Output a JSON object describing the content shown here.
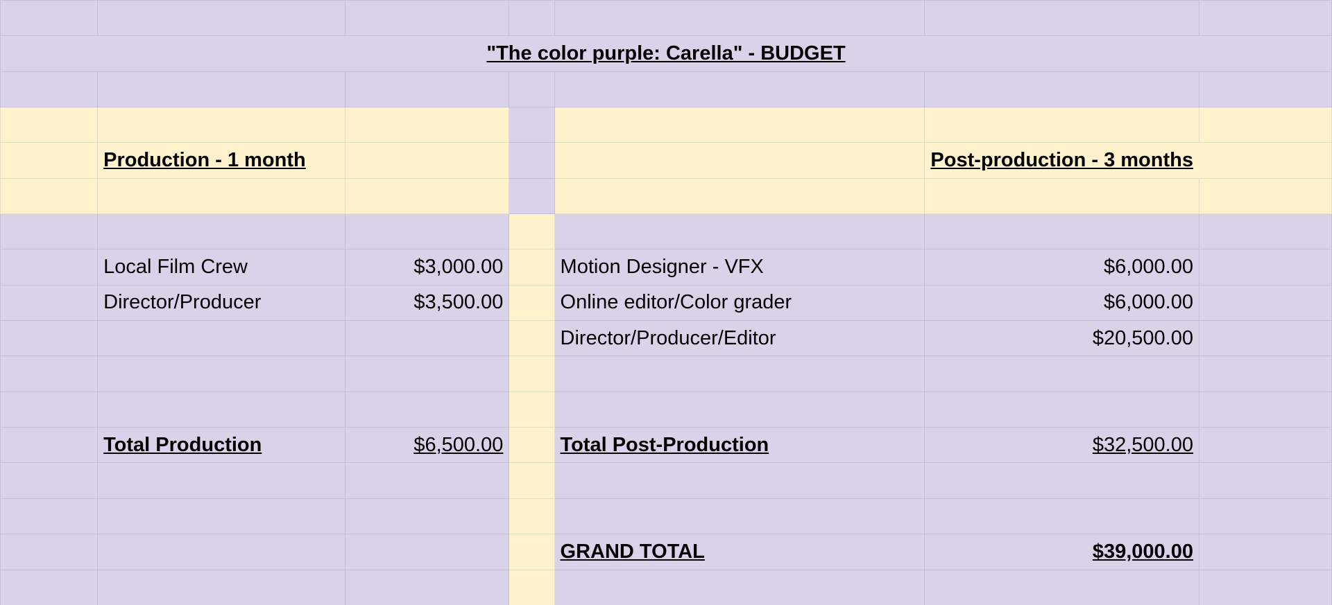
{
  "title": "\"The color purple: Carella\" - BUDGET",
  "production": {
    "heading": "Production - 1 month",
    "items": [
      {
        "label": "Local Film Crew",
        "amount": "$3,000.00"
      },
      {
        "label": "Director/Producer",
        "amount": "$3,500.00"
      }
    ],
    "total_label": "Total Production",
    "total_amount": "$6,500.00"
  },
  "post_production": {
    "heading": "Post-production - 3 months",
    "items": [
      {
        "label": "Motion Designer - VFX",
        "amount": "$6,000.00"
      },
      {
        "label": "Online editor/Color grader",
        "amount": "$6,000.00"
      },
      {
        "label": "Director/Producer/Editor",
        "amount": "$20,500.00"
      }
    ],
    "total_label": "Total Post-Production",
    "total_amount": "$32,500.00"
  },
  "grand_total": {
    "label": "GRAND TOTAL",
    "amount": "$39,000.00"
  },
  "colors": {
    "background": "#d9d2e9",
    "highlight": "#fff2cc"
  }
}
